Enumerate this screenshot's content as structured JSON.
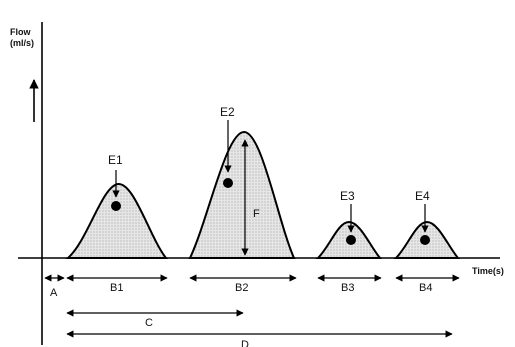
{
  "y_axis": {
    "label_line1": "Flow",
    "label_line2": "(ml/s)"
  },
  "x_axis": {
    "label": "Time(s)"
  },
  "events": [
    "E1",
    "E2",
    "E3",
    "E4"
  ],
  "intervals": {
    "a": "A",
    "b1": "B1",
    "b2": "B2",
    "b3": "B3",
    "b4": "B4",
    "c": "C",
    "d": "D"
  },
  "peak_marker": "F"
}
